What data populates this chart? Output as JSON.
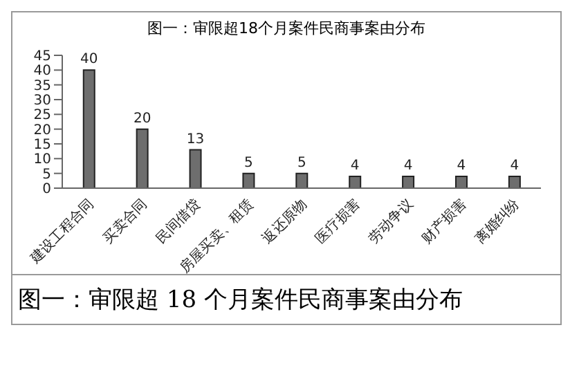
{
  "chart_data": {
    "type": "bar",
    "title": "图一：审限超18个月案件民商事案由分布",
    "categories": [
      "建设工程合同",
      "买卖合同",
      "民间借贷",
      "房屋买卖、租赁",
      "返还原物",
      "医疗损害",
      "劳动争议",
      "财产损害",
      "离婚纠纷"
    ],
    "values": [
      40,
      20,
      13,
      5,
      5,
      4,
      4,
      4,
      4
    ],
    "color": "#6e6e6e",
    "ylim": [
      0,
      45
    ],
    "yticks": [
      0,
      5,
      10,
      15,
      20,
      25,
      30,
      35,
      40,
      45
    ],
    "grid": false,
    "data_labels": true,
    "annotations": [
      "图一：审限超 18 个月案件民商事案由分布"
    ]
  }
}
